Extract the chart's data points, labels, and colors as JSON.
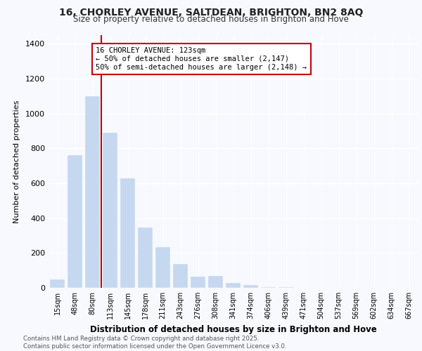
{
  "title": "16, CHORLEY AVENUE, SALTDEAN, BRIGHTON, BN2 8AQ",
  "subtitle": "Size of property relative to detached houses in Brighton and Hove",
  "xlabel": "Distribution of detached houses by size in Brighton and Hove",
  "ylabel": "Number of detached properties",
  "annotation_title": "16 CHORLEY AVENUE: 123sqm",
  "annotation_line1": "← 50% of detached houses are smaller (2,147)",
  "annotation_line2": "50% of semi-detached houses are larger (2,148) →",
  "categories": [
    "15sqm",
    "48sqm",
    "80sqm",
    "113sqm",
    "145sqm",
    "178sqm",
    "211sqm",
    "243sqm",
    "276sqm",
    "308sqm",
    "341sqm",
    "374sqm",
    "406sqm",
    "439sqm",
    "471sqm",
    "504sqm",
    "537sqm",
    "569sqm",
    "602sqm",
    "634sqm",
    "667sqm"
  ],
  "values": [
    50,
    760,
    1100,
    890,
    630,
    345,
    235,
    135,
    65,
    70,
    30,
    15,
    5,
    3,
    2,
    1,
    1,
    0,
    0,
    0,
    0
  ],
  "bar_color_left": "#c5d8ef",
  "bar_color_right": "#c5d8ef",
  "vline_x_index": 3,
  "vline_color": "#cc0000",
  "box_color": "#cc0000",
  "background_color": "#f7f9ff",
  "plot_bg_color": "#f7f9ff",
  "footer_line1": "Contains HM Land Registry data © Crown copyright and database right 2025.",
  "footer_line2": "Contains public sector information licensed under the Open Government Licence v3.0.",
  "ylim": [
    0,
    1450
  ],
  "yticks": [
    0,
    200,
    400,
    600,
    800,
    1000,
    1200,
    1400
  ]
}
